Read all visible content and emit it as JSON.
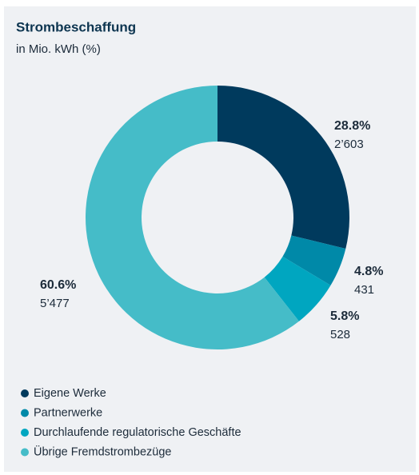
{
  "chart_data": {
    "type": "donut",
    "title": "Strombeschaffung",
    "subtitle": "in Mio. kWh (%)",
    "categories": [
      "Eigene Werke",
      "Partnerwerke",
      "Durchlaufende regulatorische Geschäfte",
      "Übrige Fremdstrombezüge"
    ],
    "values": [
      28.8,
      4.8,
      5.8,
      60.6
    ],
    "value_labels": [
      "28.8%",
      "4.8%",
      "5.8%",
      "60.6%"
    ],
    "amounts": [
      2603,
      431,
      528,
      5477
    ],
    "amount_labels": [
      "2’603",
      "431",
      "528",
      "5’477"
    ],
    "colors": [
      "#003a5d",
      "#0089a8",
      "#00a6c0",
      "#45bcc8"
    ],
    "legend": "bottom-left"
  }
}
